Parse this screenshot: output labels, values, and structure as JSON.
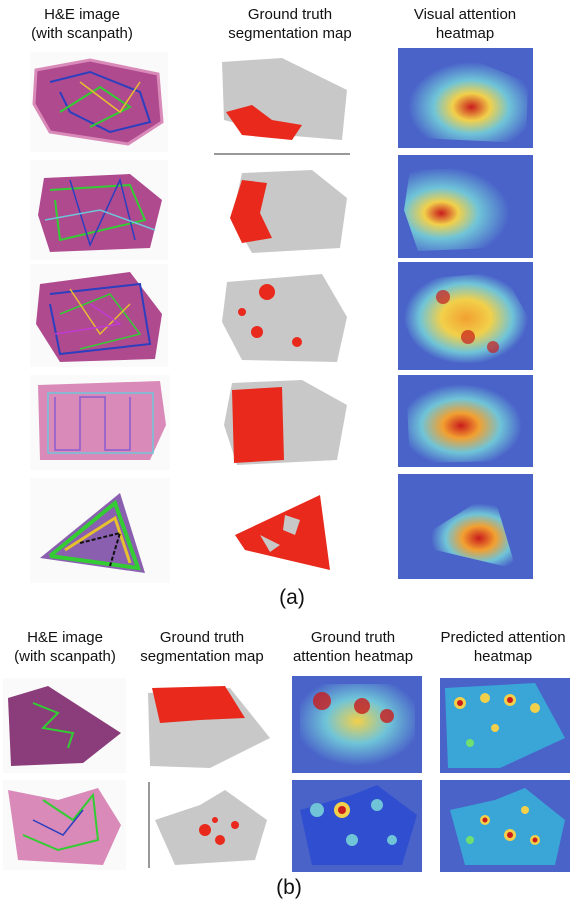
{
  "part_a": {
    "caption": "(a)",
    "headers": [
      {
        "line1": "H&E image",
        "line2": "(with scanpath)"
      },
      {
        "line1": "Ground truth",
        "line2": "segmentation map"
      },
      {
        "line1": "Visual attention",
        "line2": "heatmap"
      }
    ]
  },
  "part_b": {
    "caption": "(b)",
    "headers": [
      {
        "line1": "H&E image",
        "line2": "(with scanpath)"
      },
      {
        "line1": "Ground truth",
        "line2": "segmentation map"
      },
      {
        "line1": "Ground truth",
        "line2": "attention heatmap"
      },
      {
        "line1": "Predicted attention",
        "line2": "heatmap"
      }
    ]
  },
  "colors": {
    "tissue_he": "#b04a8f",
    "tissue_he_light": "#d98ab8",
    "tissue_gray": "#c8c8c8",
    "tumor_red": "#e8291c",
    "heat_blue": "#4a63c9",
    "heat_cyan": "#6fc4d8",
    "heat_yellow": "#f2d04a",
    "heat_red": "#c91c1c",
    "scan_green": "#33cc33",
    "scan_blue": "#2b3fbf"
  }
}
